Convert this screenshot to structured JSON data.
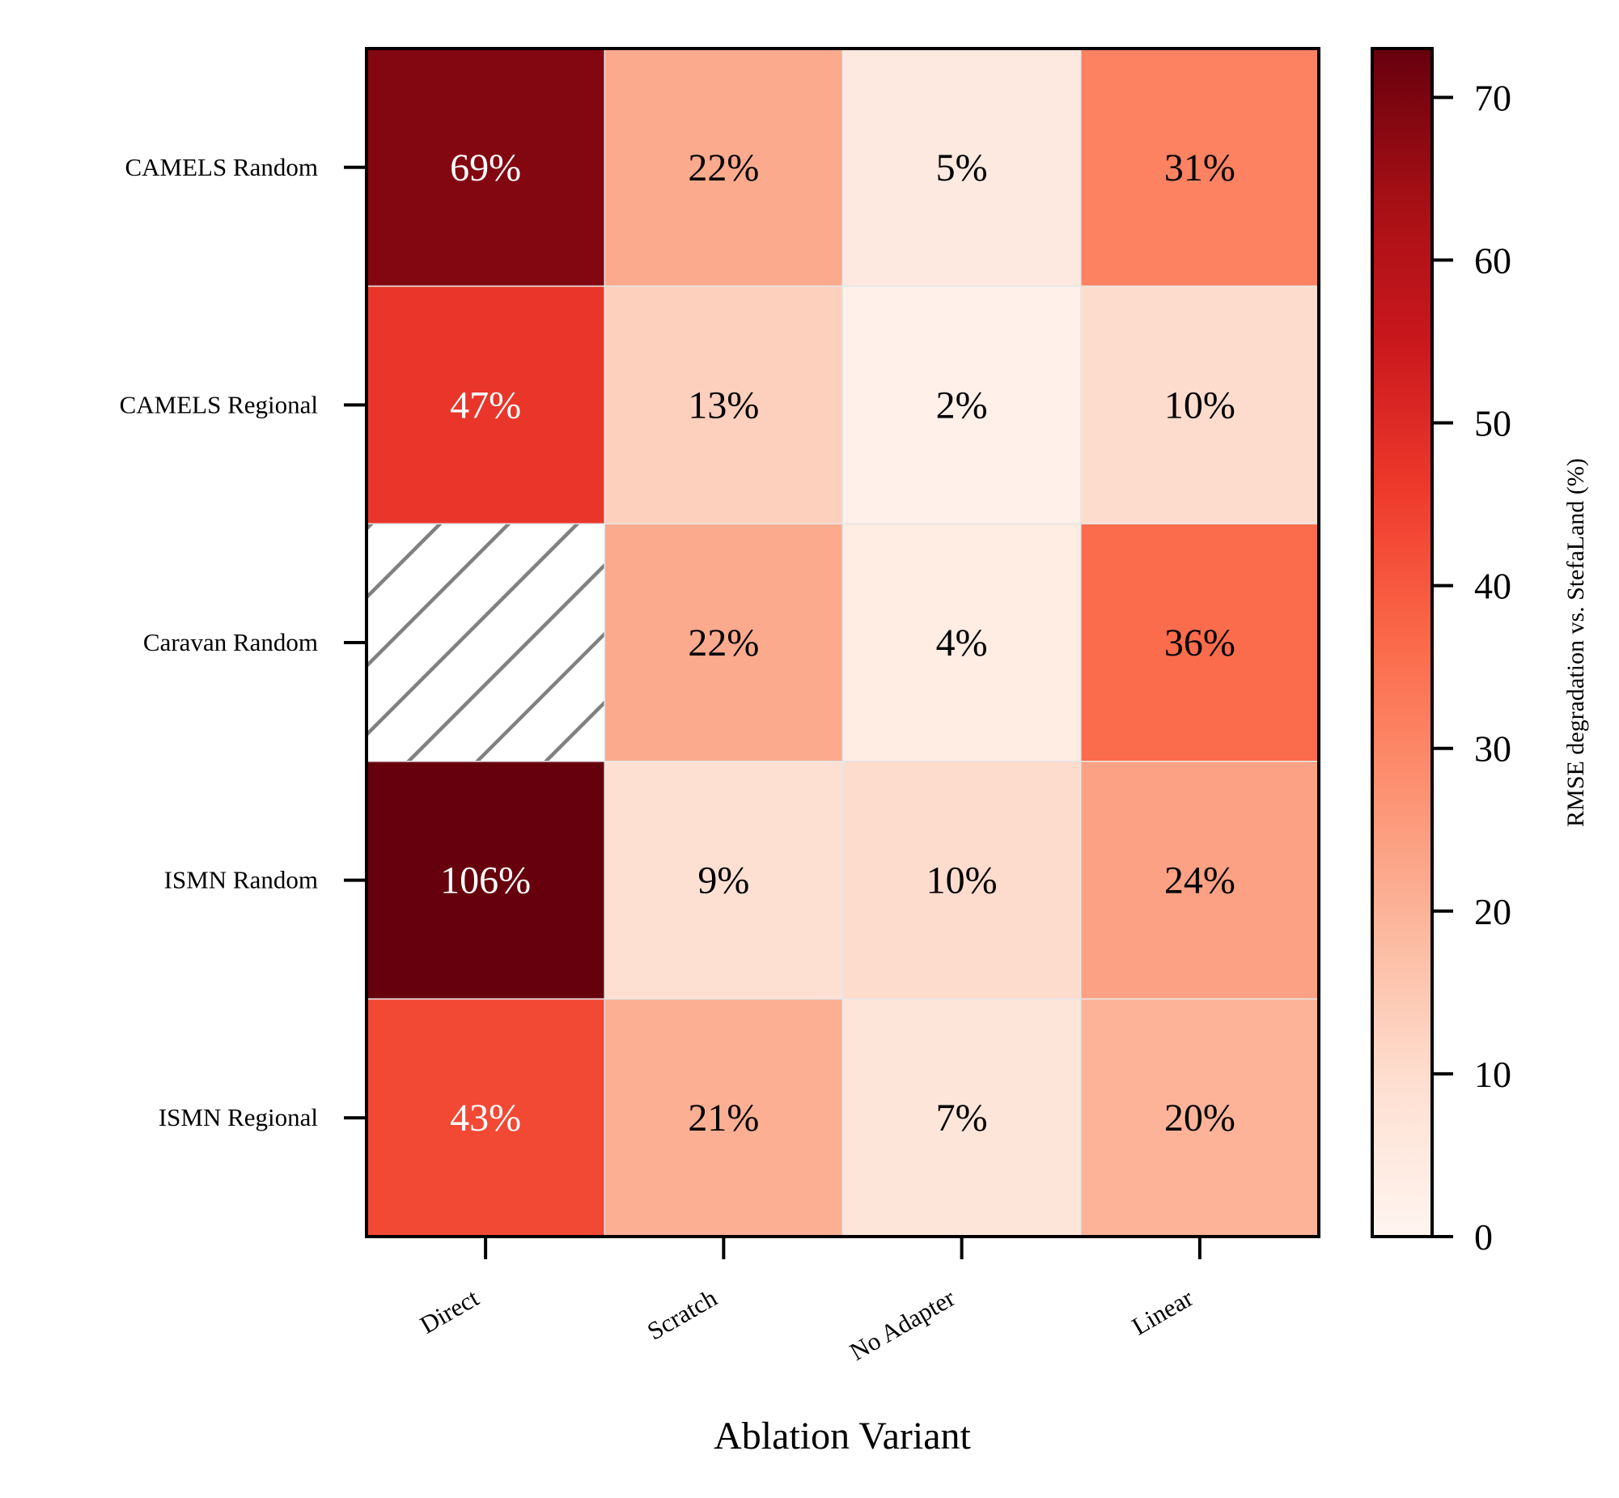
{
  "chart_data": {
    "type": "heatmap",
    "title": "",
    "xlabel": "Ablation Variant",
    "ylabel": "",
    "x_categories": [
      "Direct",
      "Scratch",
      "No Adapter",
      "Linear"
    ],
    "y_categories": [
      "CAMELS Random",
      "CAMELS Regional",
      "Caravan Random",
      "ISMN Random",
      "ISMN Regional"
    ],
    "values": [
      [
        69,
        22,
        5,
        31
      ],
      [
        47,
        13,
        2,
        10
      ],
      [
        null,
        22,
        4,
        36
      ],
      [
        106,
        9,
        10,
        24
      ],
      [
        43,
        21,
        7,
        20
      ]
    ],
    "cell_label_suffix": "%",
    "missing_cells_hatched": true,
    "colorbar": {
      "label": "RMSE degradation vs. StefaLand (%)",
      "min": 0,
      "max": 73,
      "ticks": [
        0,
        10,
        20,
        30,
        40,
        50,
        60,
        70
      ],
      "colormap": "Reds",
      "stops": [
        "#fff5f0",
        "#fee0d2",
        "#fcbba1",
        "#fc9272",
        "#fb6a4a",
        "#ef3b2c",
        "#cb181d",
        "#a50f15",
        "#67000d"
      ]
    },
    "label_text_colors": {
      "dark": "#000000",
      "light": "#ffffff"
    },
    "hatch_color": "#808080",
    "axis_color": "#000000"
  }
}
